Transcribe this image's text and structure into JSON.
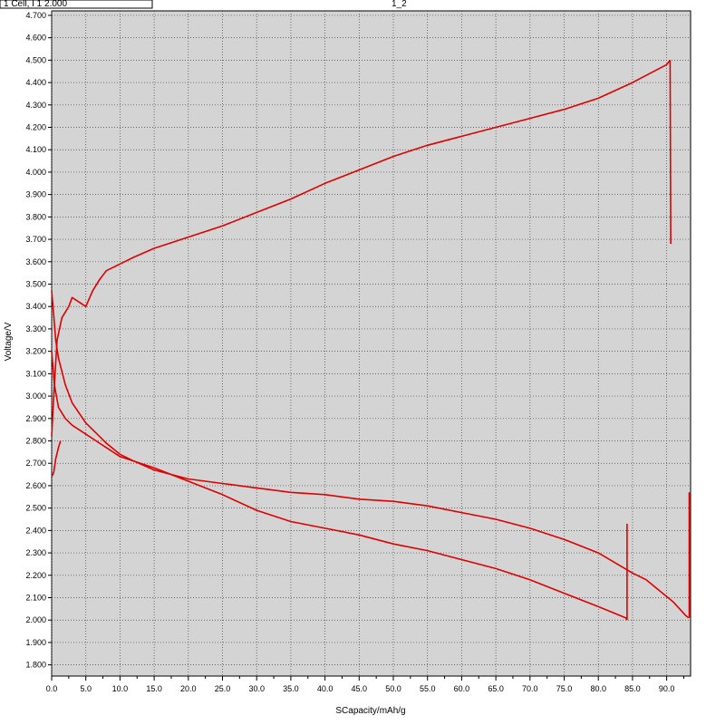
{
  "header": {
    "left_text": "1 Cell, I 1 2.000",
    "center_text": "1_2"
  },
  "chart_data": {
    "type": "line",
    "title": "",
    "xlabel": "SCapacity/mAh/g",
    "ylabel": "Voltage/V",
    "xlim": [
      0,
      93.5
    ],
    "ylim": [
      1.75,
      4.72
    ],
    "x_ticks": [
      0,
      5,
      10,
      15,
      20,
      25,
      30,
      35,
      40,
      45,
      50,
      55,
      60,
      65,
      70,
      75,
      80,
      85,
      90
    ],
    "x_tick_labels": [
      "0.0",
      "5.0",
      "10.0",
      "15.0",
      "20.0",
      "25.0",
      "30.0",
      "35.0",
      "40.0",
      "45.0",
      "50.0",
      "55.0",
      "60.0",
      "65.0",
      "70.0",
      "75.0",
      "80.0",
      "85.0",
      "90.0"
    ],
    "y_ticks": [
      1.8,
      1.9,
      2.0,
      2.1,
      2.2,
      2.3,
      2.4,
      2.5,
      2.6,
      2.7,
      2.8,
      2.9,
      3.0,
      3.1,
      3.2,
      3.3,
      3.4,
      3.5,
      3.6,
      3.7,
      3.8,
      3.9,
      4.0,
      4.1,
      4.2,
      4.3,
      4.4,
      4.5,
      4.6,
      4.7
    ],
    "y_tick_labels": [
      "1.800",
      "1.900",
      "2.000",
      "2.100",
      "2.200",
      "2.300",
      "2.400",
      "2.500",
      "2.600",
      "2.700",
      "2.800",
      "2.900",
      "3.000",
      "3.100",
      "3.200",
      "3.300",
      "3.400",
      "3.500",
      "3.600",
      "3.700",
      "3.800",
      "3.900",
      "4.000",
      "4.100",
      "4.200",
      "4.300",
      "4.400",
      "4.500",
      "4.600",
      "4.700"
    ],
    "grid": true,
    "line_color": "#e00000",
    "background_color": "#d4d4d4",
    "series": [
      {
        "points": [
          [
            0,
            2.64
          ],
          [
            0.3,
            2.66
          ],
          [
            0.6,
            2.72
          ],
          [
            1.0,
            2.77
          ],
          [
            1.3,
            2.8
          ]
        ]
      },
      {
        "points": [
          [
            0,
            2.82
          ],
          [
            0.3,
            3.0
          ],
          [
            0.6,
            3.15
          ],
          [
            0.8,
            3.25
          ],
          [
            1.5,
            3.35
          ],
          [
            2.5,
            3.4
          ],
          [
            3,
            3.44
          ],
          [
            5,
            3.4
          ],
          [
            6,
            3.47
          ],
          [
            7,
            3.52
          ],
          [
            8,
            3.56
          ],
          [
            10,
            3.59
          ],
          [
            12,
            3.62
          ],
          [
            15,
            3.66
          ],
          [
            18,
            3.69
          ],
          [
            20,
            3.71
          ],
          [
            25,
            3.76
          ],
          [
            30,
            3.82
          ],
          [
            35,
            3.88
          ],
          [
            40,
            3.95
          ],
          [
            45,
            4.01
          ],
          [
            50,
            4.07
          ],
          [
            55,
            4.12
          ],
          [
            57.5,
            4.14
          ],
          [
            60,
            4.16
          ],
          [
            65,
            4.2
          ],
          [
            70,
            4.24
          ],
          [
            75,
            4.28
          ],
          [
            80,
            4.33
          ],
          [
            85,
            4.4
          ],
          [
            90,
            4.48
          ],
          [
            90.5,
            4.5
          ]
        ]
      },
      {
        "points": [
          [
            90.5,
            4.5
          ],
          [
            90.6,
            3.68
          ]
        ]
      },
      {
        "points": [
          [
            0,
            3.47
          ],
          [
            0.3,
            3.36
          ],
          [
            0.6,
            3.25
          ],
          [
            1,
            3.17
          ],
          [
            2,
            3.05
          ],
          [
            3,
            2.97
          ],
          [
            5,
            2.88
          ],
          [
            7,
            2.82
          ],
          [
            8,
            2.79
          ],
          [
            10,
            2.74
          ],
          [
            12,
            2.71
          ],
          [
            15,
            2.67
          ],
          [
            20,
            2.63
          ],
          [
            25,
            2.61
          ],
          [
            30,
            2.59
          ],
          [
            35,
            2.57
          ],
          [
            40,
            2.56
          ],
          [
            45,
            2.54
          ],
          [
            50,
            2.53
          ],
          [
            55,
            2.51
          ],
          [
            60,
            2.48
          ],
          [
            65,
            2.45
          ],
          [
            70,
            2.41
          ],
          [
            75,
            2.36
          ],
          [
            80,
            2.3
          ],
          [
            85,
            2.21
          ],
          [
            87,
            2.18
          ],
          [
            89,
            2.13
          ],
          [
            91,
            2.08
          ],
          [
            92.8,
            2.02
          ],
          [
            93.2,
            2.01
          ]
        ]
      },
      {
        "points": [
          [
            0,
            3.2
          ],
          [
            0.4,
            3.05
          ],
          [
            1,
            2.95
          ],
          [
            2,
            2.9
          ],
          [
            3,
            2.87
          ],
          [
            5,
            2.83
          ],
          [
            7,
            2.79
          ],
          [
            8,
            2.77
          ],
          [
            10,
            2.73
          ],
          [
            15,
            2.68
          ],
          [
            20,
            2.62
          ],
          [
            25,
            2.56
          ],
          [
            30,
            2.49
          ],
          [
            35,
            2.44
          ],
          [
            40,
            2.41
          ],
          [
            45,
            2.38
          ],
          [
            50,
            2.34
          ],
          [
            55,
            2.31
          ],
          [
            60,
            2.27
          ],
          [
            65,
            2.23
          ],
          [
            70,
            2.18
          ],
          [
            75,
            2.12
          ],
          [
            80,
            2.06
          ],
          [
            84,
            2.01
          ],
          [
            84.2,
            2.0
          ]
        ]
      },
      {
        "points": [
          [
            84.2,
            2.0
          ],
          [
            84.2,
            2.43
          ]
        ]
      },
      {
        "points": [
          [
            93.3,
            2.01
          ],
          [
            93.3,
            2.57
          ]
        ]
      }
    ]
  }
}
